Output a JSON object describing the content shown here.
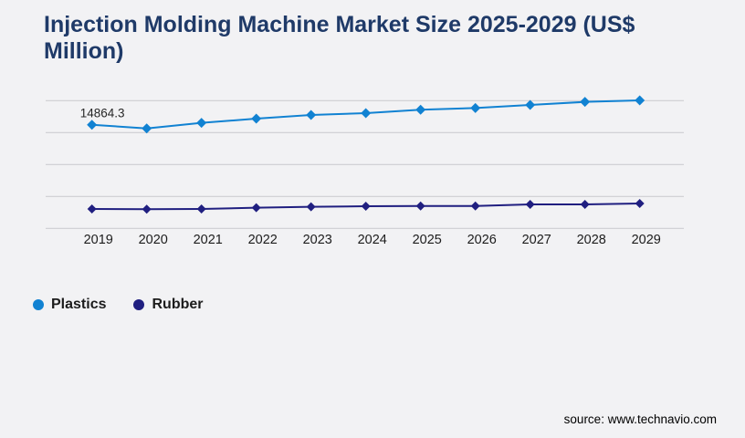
{
  "page": {
    "background": "#f2f2f4",
    "source_text": "source: www.technavio.com"
  },
  "chart_data": {
    "type": "line",
    "title": "Injection Molding Machine Market Size 2025-2029 (US$ Million)",
    "title_color": "#1f3a68",
    "categories": [
      "2019",
      "2020",
      "2021",
      "2022",
      "2023",
      "2024",
      "2025",
      "2026",
      "2027",
      "2028",
      "2029"
    ],
    "series": [
      {
        "name": "Plastics",
        "color": "#1182d2",
        "marker": "diamond",
        "values": [
          14864.3,
          14340,
          15130,
          15740,
          16270,
          16530,
          17010,
          17270,
          17700,
          18140,
          18360
        ]
      },
      {
        "name": "Rubber",
        "color": "#201f80",
        "marker": "diamond",
        "values": [
          2790,
          2750,
          2790,
          2960,
          3090,
          3180,
          3220,
          3220,
          3440,
          3440,
          3570
        ]
      }
    ],
    "point_label": {
      "series": "Plastics",
      "category": "2019",
      "text": "14864.3"
    },
    "ylim": [
      0,
      18320
    ],
    "xlabel": "",
    "ylabel": "",
    "grid": "horizontal-only",
    "gridline_count": 5,
    "gridline_color": "#cecdd2",
    "y_axis_labels_visible": false,
    "legend_position": "bottom-left",
    "label_color": "#1c1c1c"
  }
}
